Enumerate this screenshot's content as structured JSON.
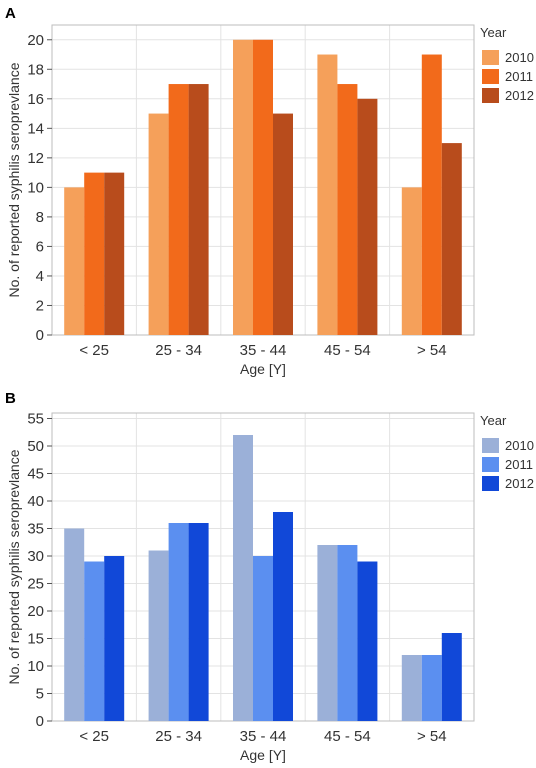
{
  "chart_data": [
    {
      "panel_label": "A",
      "type": "bar",
      "xlabel": "Age [Y]",
      "ylabel": "No. of reported syphilis seroprevlance",
      "categories": [
        "< 25",
        "25 - 34",
        "35 - 44",
        "45 - 54",
        "> 54"
      ],
      "ylim": [
        0,
        21
      ],
      "yticks": [
        0,
        2,
        4,
        6,
        8,
        10,
        12,
        14,
        16,
        18,
        20
      ],
      "grid": true,
      "legend_title": "Year",
      "legend_position": "right",
      "series": [
        {
          "name": "2010",
          "color": "#f5a05a",
          "values": [
            10,
            15,
            20,
            19,
            10
          ]
        },
        {
          "name": "2011",
          "color": "#f26a1b",
          "values": [
            11,
            17,
            20,
            17,
            19
          ]
        },
        {
          "name": "2012",
          "color": "#b84c1c",
          "values": [
            11,
            17,
            15,
            16,
            13
          ]
        }
      ]
    },
    {
      "panel_label": "B",
      "type": "bar",
      "xlabel": "Age [Y]",
      "ylabel": "No. of reported syphilis seroprevlance",
      "categories": [
        "< 25",
        "25 - 34",
        "35 - 44",
        "45 - 54",
        "> 54"
      ],
      "ylim": [
        0,
        56
      ],
      "yticks": [
        0,
        5,
        10,
        15,
        20,
        25,
        30,
        35,
        40,
        45,
        50,
        55
      ],
      "grid": true,
      "legend_title": "Year",
      "legend_position": "right",
      "series": [
        {
          "name": "2010",
          "color": "#9bb0d8",
          "values": [
            35,
            31,
            52,
            32,
            12
          ]
        },
        {
          "name": "2011",
          "color": "#5b8ff0",
          "values": [
            29,
            36,
            30,
            32,
            12
          ]
        },
        {
          "name": "2012",
          "color": "#1148d8",
          "values": [
            30,
            36,
            38,
            29,
            16
          ]
        }
      ]
    }
  ]
}
